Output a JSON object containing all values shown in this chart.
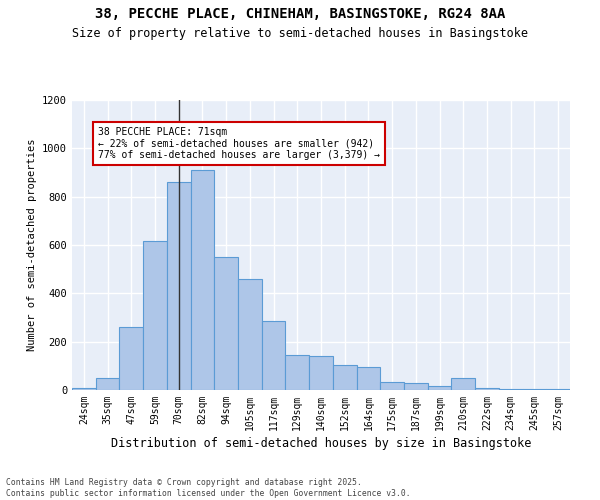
{
  "title_line1": "38, PECCHE PLACE, CHINEHAM, BASINGSTOKE, RG24 8AA",
  "title_line2": "Size of property relative to semi-detached houses in Basingstoke",
  "xlabel": "Distribution of semi-detached houses by size in Basingstoke",
  "ylabel": "Number of semi-detached properties",
  "categories": [
    "24sqm",
    "35sqm",
    "47sqm",
    "59sqm",
    "70sqm",
    "82sqm",
    "94sqm",
    "105sqm",
    "117sqm",
    "129sqm",
    "140sqm",
    "152sqm",
    "164sqm",
    "175sqm",
    "187sqm",
    "199sqm",
    "210sqm",
    "222sqm",
    "234sqm",
    "245sqm",
    "257sqm"
  ],
  "values": [
    8,
    50,
    260,
    615,
    860,
    910,
    550,
    460,
    285,
    145,
    140,
    105,
    95,
    35,
    28,
    15,
    48,
    10,
    4,
    4,
    4
  ],
  "bar_color": "#aec6e8",
  "bar_edge_color": "#5b9bd5",
  "highlight_bar_index": 4,
  "highlight_line_color": "#333333",
  "annotation_text": "38 PECCHE PLACE: 71sqm\n← 22% of semi-detached houses are smaller (942)\n77% of semi-detached houses are larger (3,379) →",
  "annotation_box_color": "#ffffff",
  "annotation_box_edge_color": "#cc0000",
  "ylim": [
    0,
    1200
  ],
  "yticks": [
    0,
    200,
    400,
    600,
    800,
    1000,
    1200
  ],
  "background_color": "#e8eef8",
  "grid_color": "#ffffff",
  "footer_line1": "Contains HM Land Registry data © Crown copyright and database right 2025.",
  "footer_line2": "Contains public sector information licensed under the Open Government Licence v3.0."
}
